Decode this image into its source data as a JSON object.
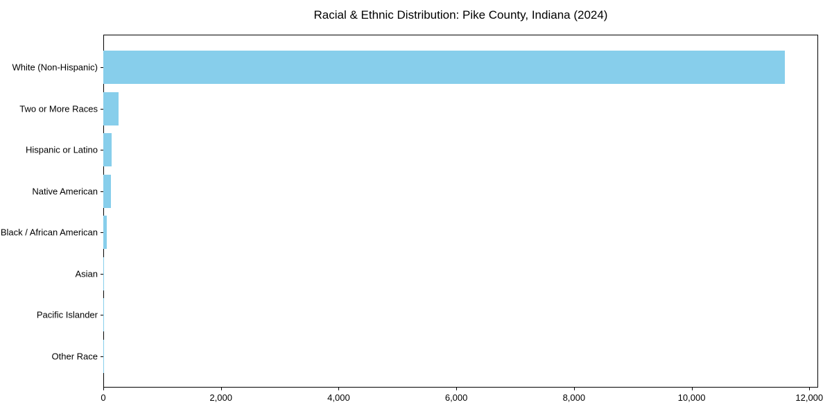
{
  "chart_data": {
    "type": "bar",
    "orientation": "horizontal",
    "title": "Racial & Ethnic Distribution: Pike County, Indiana (2024)",
    "categories": [
      "White (Non-Hispanic)",
      "Two or More Races",
      "Hispanic or Latino",
      "Native American",
      "Black / African American",
      "Asian",
      "Pacific Islander",
      "Other Race"
    ],
    "values": [
      11580,
      260,
      140,
      125,
      60,
      5,
      2,
      3
    ],
    "xlabel": "",
    "ylabel": "",
    "xlim": [
      0,
      12150
    ],
    "xticks": [
      0,
      2000,
      4000,
      6000,
      8000,
      10000,
      12000
    ],
    "xtick_labels": [
      "0",
      "2,000",
      "4,000",
      "6,000",
      "8,000",
      "10,000",
      "12,000"
    ],
    "bar_color": "#87CEEB",
    "axis_color": "#000000",
    "text_color": "#000000",
    "background_color": "#ffffff",
    "grid": false,
    "legend": "none"
  }
}
